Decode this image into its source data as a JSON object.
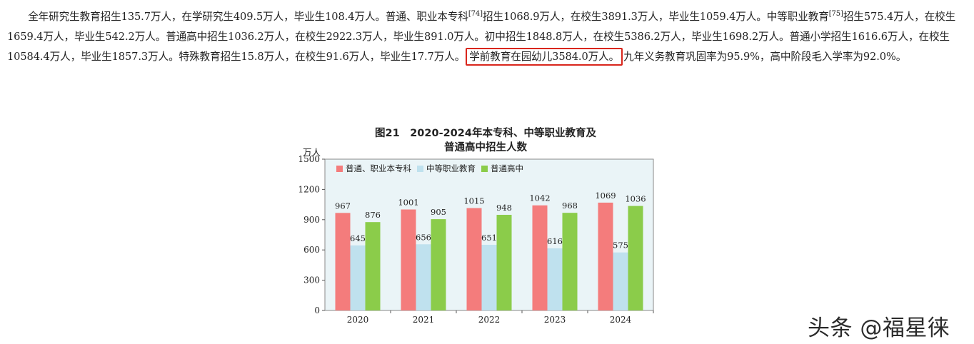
{
  "article": {
    "part1": "全年研究生教育招生135.7万人，在学研究生409.5万人，毕业生108.4万人。普通、职业本专科",
    "note1": "[74]",
    "part2": "招生1068.9万人，在校生3891.3万人，毕业生1059.4万人。中等职业教育",
    "note2": "[75]",
    "part3": "招生575.4万人，在校生1659.4万人，毕业生542.2万人。普通高中招生1036.2万人，在校生2922.3万人，毕业生891.0万人。初中招生1848.8万人，在校生5386.2万人，毕业生1698.2万人。普通小学招生1616.6万人，在校生10584.4万人，毕业生1857.3万人。特殊教育招生15.8万人，在校生91.6万人，毕业生17.7万人。",
    "highlight": "学前教育在园幼儿3584.0万人。",
    "part4": "九年义务教育巩固率为95.9%，高中阶段毛入学率为92.0%。"
  },
  "figure": {
    "title_line1": "图21　2020-2024年本专科、中等职业教育及",
    "title_line2": "普通高中招生人数",
    "unit": "万人"
  },
  "watermark": "头条 @福星徕",
  "chart_data": {
    "type": "bar",
    "title": "图21　2020-2024年本专科、中等职业教育及普通高中招生人数",
    "ylabel": "万人",
    "xlabel": "",
    "ylim": [
      0,
      1500
    ],
    "yticks": [
      0,
      300,
      600,
      900,
      1200,
      1500
    ],
    "grid": false,
    "legend_position": "top-left",
    "categories": [
      "2020",
      "2021",
      "2022",
      "2023",
      "2024"
    ],
    "series": [
      {
        "name": "普通、职业本专科",
        "color": "#f47c7c",
        "values": [
          967,
          1001,
          1015,
          1042,
          1069
        ]
      },
      {
        "name": "中等职业教育",
        "color": "#bfe1ee",
        "values": [
          645,
          656,
          651,
          616,
          575
        ]
      },
      {
        "name": "普通高中",
        "color": "#8bcc4a",
        "values": [
          876,
          905,
          948,
          968,
          1036
        ]
      }
    ],
    "background": "#eaf4f7"
  }
}
